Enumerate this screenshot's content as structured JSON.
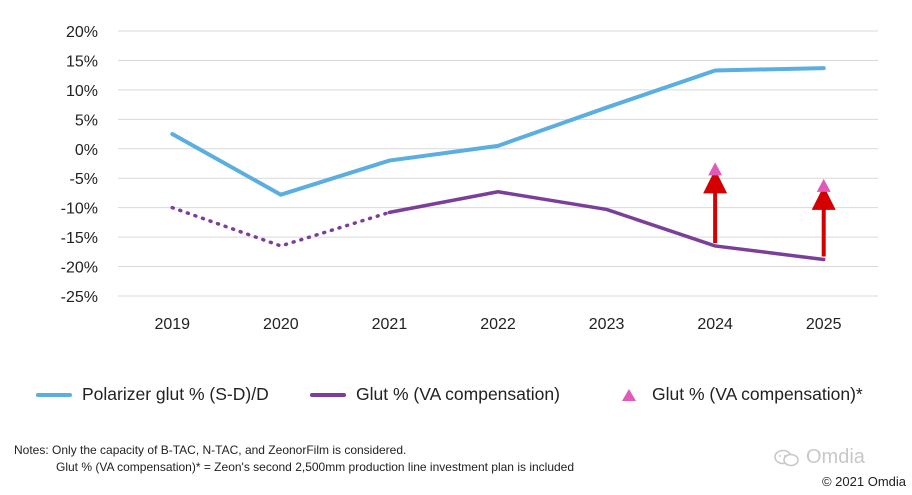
{
  "chart_data": {
    "type": "line",
    "categories": [
      "2019",
      "2020",
      "2021",
      "2022",
      "2023",
      "2024",
      "2025"
    ],
    "ylim": [
      -25,
      20
    ],
    "yticks": [
      "20%",
      "15%",
      "10%",
      "5%",
      "0%",
      "-5%",
      "-10%",
      "-15%",
      "-20%",
      "-25%"
    ],
    "ytick_values": [
      20,
      15,
      10,
      5,
      0,
      -5,
      -10,
      -15,
      -20,
      -25
    ],
    "grid": "horizontal",
    "legend_position": "bottom",
    "series": [
      {
        "name": "Polarizer glut % (S-D)/D",
        "color": "#5aaee0",
        "style": "solid",
        "values": [
          2.5,
          -7.8,
          -2.0,
          0.5,
          7.0,
          13.3,
          13.7
        ]
      },
      {
        "name": "Glut % (VA compensation)",
        "color": "#7b3f9a",
        "style": "dotted-then-solid",
        "dotted_until_index": 2,
        "values": [
          -10.0,
          -16.5,
          -10.8,
          -7.3,
          -10.3,
          -16.5,
          -18.8
        ]
      },
      {
        "name": "Glut % (VA compensation)*",
        "color": "#e05ab8",
        "style": "marker-triangle",
        "values": [
          null,
          null,
          null,
          null,
          null,
          -3.5,
          -6.3
        ]
      }
    ],
    "arrows": {
      "color": "#d40000",
      "from_series": 1,
      "to_series": 2,
      "indices": [
        5,
        6
      ]
    }
  },
  "notes": {
    "line1": "Notes: Only the capacity of B-TAC, N-TAC, and ZeonorFilm is considered.",
    "line2": "Glut % (VA compensation)* = Zeon's second 2,500mm production line investment plan is included"
  },
  "watermark": "Omdia",
  "copyright": "© 2021 Omdia"
}
